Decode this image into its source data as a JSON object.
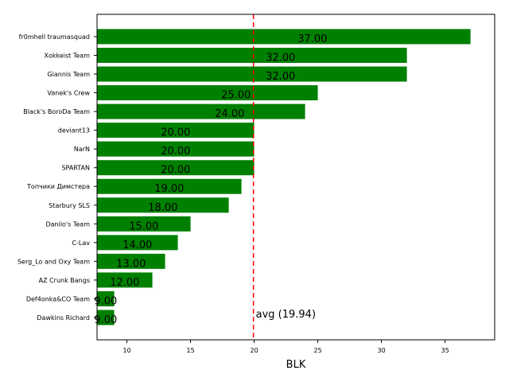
{
  "chart_data": {
    "type": "bar",
    "orientation": "horizontal",
    "title": "",
    "xlabel": "BLK",
    "ylabel": "",
    "xlim": [
      7.65,
      38.9
    ],
    "xticks": [
      10,
      15,
      20,
      25,
      30,
      35
    ],
    "grid": false,
    "bar_color": "#008000",
    "categories": [
      "fr0mhell traumasquad",
      "Xokkeist Team",
      "Giannis Team",
      "Vanek's Crew",
      "Black's BoroDa Team",
      "deviant13",
      "NarN",
      "SPARTAN",
      "Топчики Димстера",
      "Starbury SLS",
      "Danilo's Team",
      "C-Lav",
      "Serg_Lo and Oxy Team",
      "AZ Crunk Bangs",
      "Def4onka&CO Team",
      "Dawkins Richard"
    ],
    "values": [
      37,
      32,
      32,
      25,
      24,
      20,
      20,
      20,
      19,
      18,
      15,
      14,
      13,
      12,
      9,
      9
    ],
    "value_labels": [
      "37.00",
      "32.00",
      "32.00",
      "25.00",
      "24.00",
      "20.00",
      "20.00",
      "20.00",
      "19.00",
      "18.00",
      "15.00",
      "14.00",
      "13.00",
      "12.00",
      "9.00",
      "9.00"
    ],
    "reference_line": {
      "value": 19.94,
      "label": "avg (19.94)",
      "color": "#ff0000",
      "style": "dashed"
    }
  }
}
